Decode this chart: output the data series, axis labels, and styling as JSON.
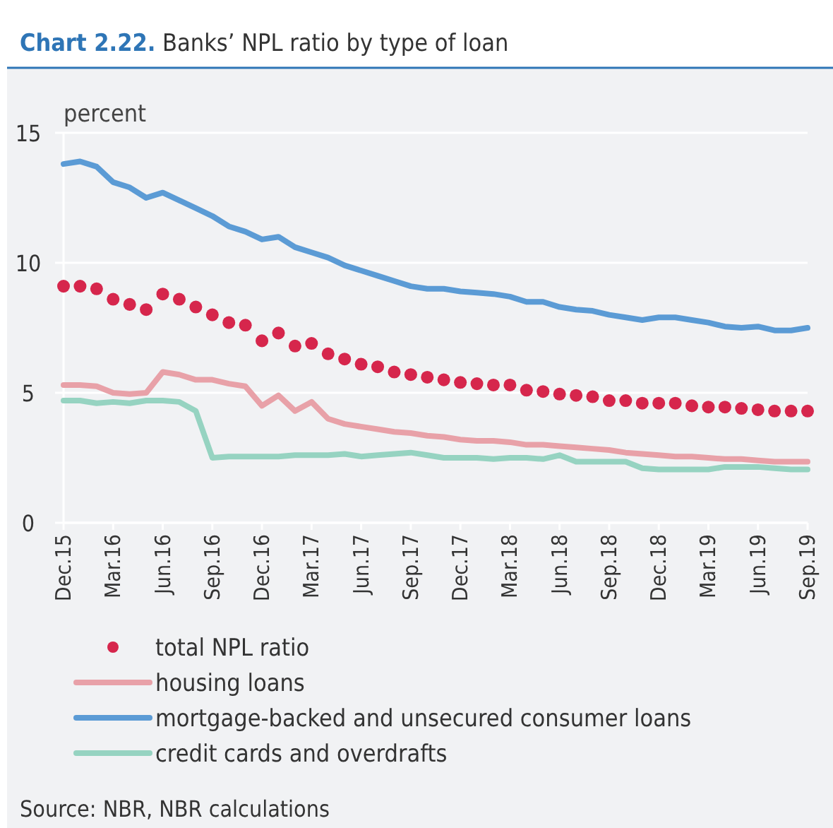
{
  "chart_data": {
    "type": "line",
    "title": "Chart 2.22. Banks’ NPL ratio by type of loan",
    "ylabel": "percent",
    "categories": [
      "Dec.15",
      null,
      null,
      "Mar.16",
      null,
      null,
      "Jun.16",
      null,
      null,
      "Sep.16",
      null,
      null,
      "Dec.16",
      null,
      null,
      "Mar.17",
      null,
      null,
      "Jun.17",
      null,
      null,
      "Sep.17",
      null,
      null,
      "Dec.17",
      null,
      null,
      "Mar.18",
      null,
      null,
      "Jun.18",
      null,
      null,
      "Sep.18",
      null,
      null,
      "Dec.18",
      null,
      null,
      "Mar.19",
      null,
      null,
      "Jun.19",
      null,
      null,
      "Sep.19"
    ],
    "series": [
      {
        "name": "total NPL ratio",
        "type": "scatter",
        "marker": "circle",
        "color": "#d6264c",
        "values": [
          9.1,
          9.1,
          9.0,
          8.6,
          8.4,
          8.2,
          8.8,
          8.6,
          8.3,
          8.0,
          7.7,
          7.6,
          7.0,
          7.3,
          6.8,
          6.9,
          6.5,
          6.3,
          6.1,
          6.0,
          5.8,
          5.7,
          5.6,
          5.5,
          5.4,
          5.35,
          5.3,
          5.3,
          5.1,
          5.05,
          4.95,
          4.9,
          4.85,
          4.7,
          4.7,
          4.6,
          4.6,
          4.6,
          4.5,
          4.45,
          4.45,
          4.4,
          4.35,
          4.3,
          4.3,
          4.3
        ]
      },
      {
        "name": "housing loans",
        "color": "#e8a1a8",
        "values": [
          5.3,
          5.3,
          5.25,
          5.0,
          4.95,
          5.0,
          5.8,
          5.7,
          5.5,
          5.5,
          5.35,
          5.25,
          4.5,
          4.9,
          4.3,
          4.65,
          4.0,
          3.8,
          3.7,
          3.6,
          3.5,
          3.45,
          3.35,
          3.3,
          3.2,
          3.15,
          3.15,
          3.1,
          3.0,
          3.0,
          2.95,
          2.9,
          2.85,
          2.8,
          2.7,
          2.65,
          2.6,
          2.55,
          2.55,
          2.5,
          2.45,
          2.45,
          2.4,
          2.35,
          2.35,
          2.35
        ]
      },
      {
        "name": "mortgage-backed and unsecured consumer loans",
        "color": "#5b9bd5",
        "values": [
          13.8,
          13.9,
          13.7,
          13.1,
          12.9,
          12.5,
          12.7,
          12.4,
          12.1,
          11.8,
          11.4,
          11.2,
          10.9,
          11.0,
          10.6,
          10.4,
          10.2,
          9.9,
          9.7,
          9.5,
          9.3,
          9.1,
          9.0,
          9.0,
          8.9,
          8.85,
          8.8,
          8.7,
          8.5,
          8.5,
          8.3,
          8.2,
          8.15,
          8.0,
          7.9,
          7.8,
          7.9,
          7.9,
          7.8,
          7.7,
          7.55,
          7.5,
          7.55,
          7.4,
          7.4,
          7.5
        ]
      },
      {
        "name": "credit cards and overdrafts",
        "color": "#96d3c1",
        "values": [
          4.7,
          4.7,
          4.6,
          4.65,
          4.6,
          4.7,
          4.7,
          4.65,
          4.3,
          2.5,
          2.55,
          2.55,
          2.55,
          2.55,
          2.6,
          2.6,
          2.6,
          2.65,
          2.55,
          2.6,
          2.65,
          2.7,
          2.6,
          2.5,
          2.5,
          2.5,
          2.45,
          2.5,
          2.5,
          2.45,
          2.6,
          2.35,
          2.35,
          2.35,
          2.35,
          2.1,
          2.05,
          2.05,
          2.05,
          2.05,
          2.15,
          2.15,
          2.15,
          2.1,
          2.05,
          2.05
        ]
      }
    ],
    "ylim": [
      0,
      15
    ],
    "yticks": [
      0,
      5,
      10,
      15
    ],
    "grid": "y",
    "legend": "bottom",
    "line_style": "solid",
    "annotations": [
      "Source: NBR, NBR calculations"
    ]
  }
}
